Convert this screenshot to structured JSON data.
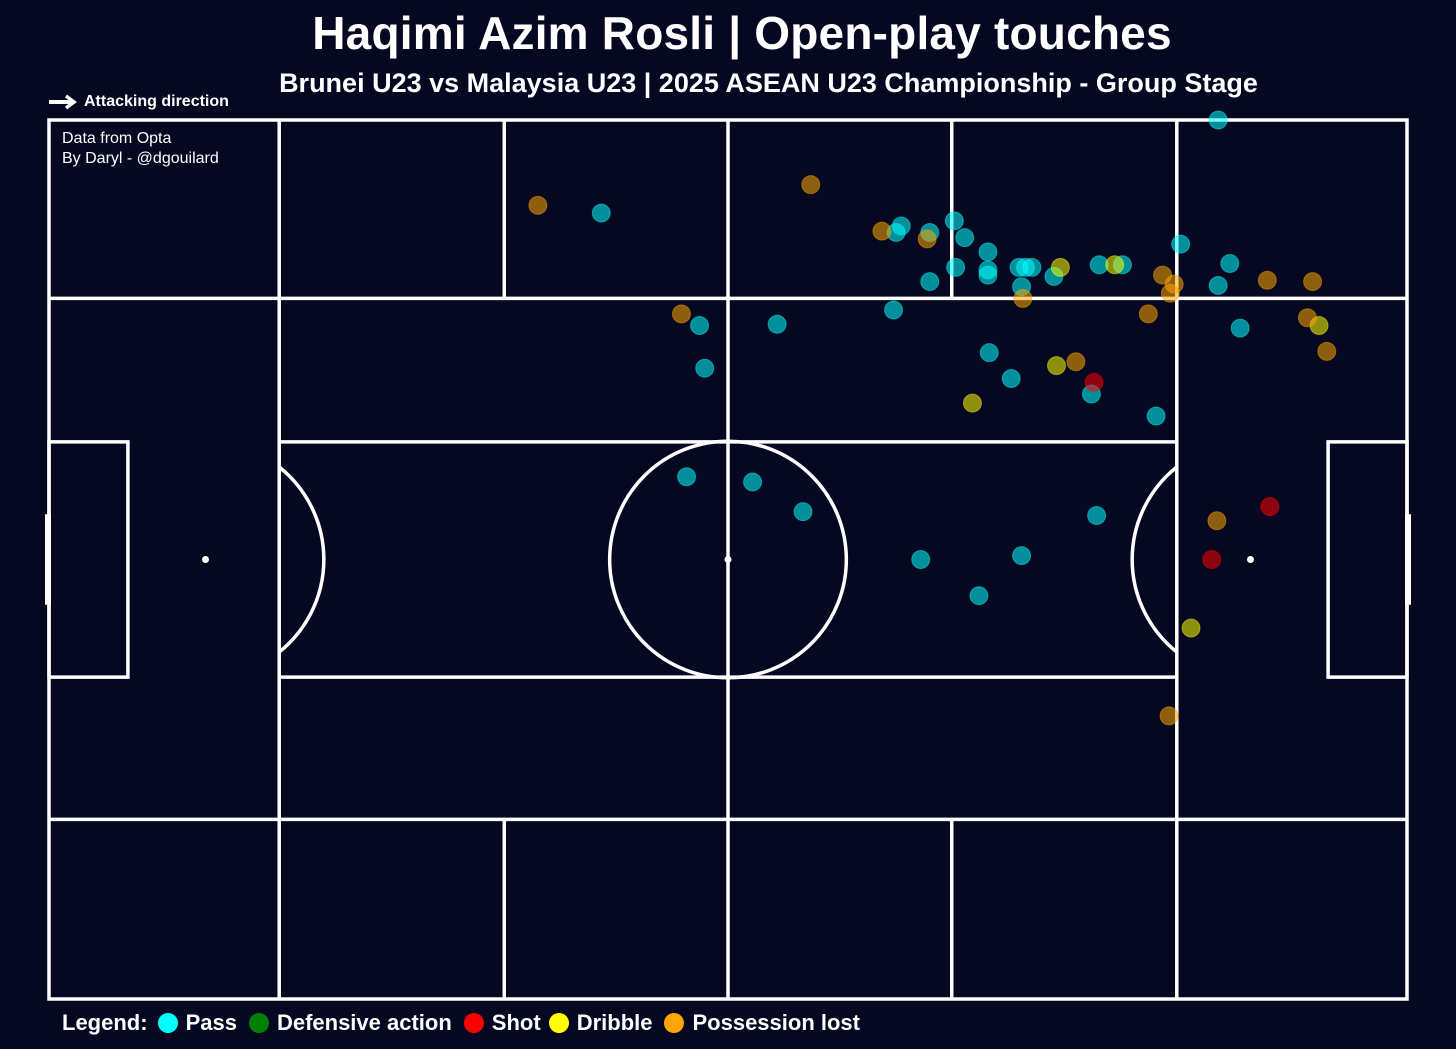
{
  "title": "Haqimi Azim Rosli | Open-play touches",
  "subtitle": "Brunei U23 vs Malaysia U23 | 2025 ASEAN U23 Championship - Group Stage",
  "attacking_direction_label": "Attacking direction",
  "credits": {
    "line1": "Data from Opta",
    "line2": "By Daryl - @dgouilard"
  },
  "legend": {
    "title": "Legend:",
    "items": [
      {
        "label": "Pass",
        "color": "#00ffff"
      },
      {
        "label": "Defensive action",
        "color": "#008000"
      },
      {
        "label": "Shot",
        "color": "#ff0000"
      },
      {
        "label": "Dribble",
        "color": "#ffff00"
      },
      {
        "label": "Possession lost",
        "color": "#ffa500"
      }
    ]
  },
  "colors": {
    "background": "#060822",
    "lines": "#ffffff",
    "Pass": "#00ffff",
    "Defensive action": "#008000",
    "Shot": "#ff0000",
    "Dribble": "#ffff00",
    "Possession lost": "#ffa500"
  },
  "chart_data": {
    "type": "scatter",
    "xlim": [
      0,
      105
    ],
    "ylim": [
      0,
      68
    ],
    "series": [
      {
        "name": "Pass",
        "points": [
          [
            90.4,
            68.0
          ],
          [
            42.7,
            60.8
          ],
          [
            65.9,
            59.8
          ],
          [
            65.5,
            59.3
          ],
          [
            68.1,
            59.3
          ],
          [
            70.0,
            60.2
          ],
          [
            70.8,
            58.9
          ],
          [
            72.6,
            57.8
          ],
          [
            72.6,
            56.4
          ],
          [
            70.1,
            56.6
          ],
          [
            72.6,
            56.0
          ],
          [
            75.0,
            56.6
          ],
          [
            75.5,
            56.6
          ],
          [
            76.0,
            56.6
          ],
          [
            75.2,
            55.1
          ],
          [
            77.7,
            55.9
          ],
          [
            81.2,
            56.8
          ],
          [
            83.0,
            56.8
          ],
          [
            87.5,
            58.4
          ],
          [
            90.4,
            55.2
          ],
          [
            68.1,
            55.5
          ],
          [
            91.3,
            56.9
          ],
          [
            50.3,
            52.1
          ],
          [
            56.3,
            52.2
          ],
          [
            65.3,
            53.3
          ],
          [
            50.7,
            48.8
          ],
          [
            72.7,
            50.0
          ],
          [
            74.4,
            48.0
          ],
          [
            80.6,
            46.8
          ],
          [
            85.6,
            45.1
          ],
          [
            92.1,
            51.9
          ],
          [
            49.3,
            40.4
          ],
          [
            54.4,
            40.0
          ],
          [
            58.3,
            37.7
          ],
          [
            81.0,
            37.4
          ],
          [
            67.4,
            34.0
          ],
          [
            75.2,
            34.3
          ],
          [
            71.9,
            31.2
          ]
        ]
      },
      {
        "name": "Defensive action",
        "points": []
      },
      {
        "name": "Shot",
        "points": [
          [
            80.8,
            47.7
          ],
          [
            94.4,
            38.1
          ],
          [
            89.9,
            34.0
          ]
        ]
      },
      {
        "name": "Dribble",
        "points": [
          [
            78.2,
            56.6
          ],
          [
            82.4,
            56.8
          ],
          [
            98.2,
            52.1
          ],
          [
            77.9,
            49.0
          ],
          [
            71.4,
            46.1
          ],
          [
            88.3,
            28.7
          ]
        ]
      },
      {
        "name": "Possession lost",
        "points": [
          [
            37.8,
            61.4
          ],
          [
            58.9,
            63.0
          ],
          [
            64.4,
            59.4
          ],
          [
            67.9,
            58.8
          ],
          [
            75.3,
            54.2
          ],
          [
            86.1,
            56.0
          ],
          [
            87.0,
            55.3
          ],
          [
            86.7,
            54.6
          ],
          [
            85.0,
            53.0
          ],
          [
            94.2,
            55.6
          ],
          [
            97.7,
            55.5
          ],
          [
            97.3,
            52.7
          ],
          [
            98.8,
            50.1
          ],
          [
            48.9,
            53.0
          ],
          [
            79.4,
            49.3
          ],
          [
            90.3,
            37.0
          ],
          [
            86.6,
            21.9
          ]
        ]
      }
    ]
  }
}
